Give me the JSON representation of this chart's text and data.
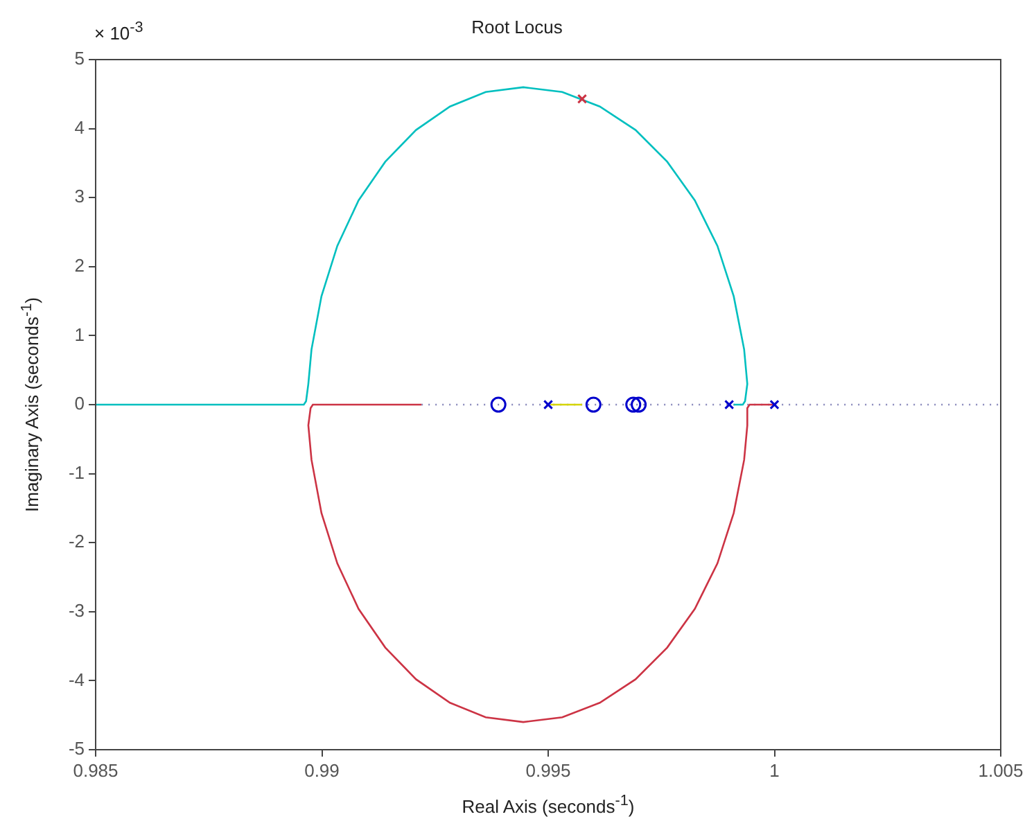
{
  "chart_data": {
    "type": "line",
    "title": "Root Locus",
    "xlabel": "Real Axis (seconds$^{-1}$)",
    "ylabel": "Imaginary Axis (seconds$^{-1}$)",
    "annotations": [
      "× 10$^{-3}$"
    ],
    "xlim": [
      0.985,
      1.005
    ],
    "xticks": [
      0.985,
      0.99,
      0.995,
      1,
      1.005
    ],
    "ylim": [
      -5,
      5
    ],
    "yticks": [
      -5,
      -4,
      -3,
      -2,
      -1,
      0,
      1,
      2,
      3,
      4,
      5
    ],
    "grid": false,
    "legend": false,
    "series": [
      {
        "type": "line",
        "color": "#00bfbf",
        "marker": "none",
        "line_style": "solid",
        "x": [
          0.985,
          0.9896,
          0.98965,
          0.9897,
          0.98977,
          0.98999,
          0.99034,
          0.99081,
          0.9914,
          0.99208,
          0.99283,
          0.99362,
          0.99445,
          0.99531,
          0.99614,
          0.99693,
          0.99763,
          0.99824,
          0.99874,
          0.9991,
          0.99933,
          0.9994,
          0.99935,
          0.9993,
          0.9991
        ],
        "values": [
          0,
          0,
          0.05,
          0.3,
          0.8,
          1.57,
          2.3,
          2.96,
          3.52,
          3.98,
          4.32,
          4.53,
          4.6,
          4.53,
          4.32,
          3.98,
          3.52,
          2.96,
          2.3,
          1.57,
          0.8,
          0.3,
          0.05,
          0,
          0
        ]
      },
      {
        "type": "line",
        "color": "#cc3344",
        "marker": "none",
        "line_style": "solid",
        "x": [
          1.0,
          0.99945,
          0.9994,
          0.9994,
          0.99933,
          0.9991,
          0.99874,
          0.99824,
          0.99763,
          0.99693,
          0.99614,
          0.99531,
          0.99445,
          0.99362,
          0.99283,
          0.99208,
          0.9914,
          0.99081,
          0.99034,
          0.98999,
          0.98977,
          0.9897,
          0.98975,
          0.9898,
          0.9922
        ],
        "values": [
          0,
          0,
          -0.05,
          -0.3,
          -0.8,
          -1.57,
          -2.3,
          -2.96,
          -3.52,
          -3.98,
          -4.32,
          -4.53,
          -4.6,
          -4.53,
          -4.32,
          -3.98,
          -3.52,
          -2.96,
          -2.3,
          -1.57,
          -0.8,
          -0.3,
          -0.05,
          0,
          0
        ]
      },
      {
        "type": "line",
        "color": "#d4d400",
        "marker": "none",
        "line_style": "solid",
        "x": [
          0.99505,
          0.99575
        ],
        "values": [
          0,
          0
        ]
      },
      {
        "type": "line",
        "color": "#8888bb",
        "marker": "none",
        "line_style": "dotted",
        "x": [
          0.9922,
          1.005
        ],
        "values": [
          0,
          0
        ]
      },
      {
        "type": "scatter",
        "color": "#0000cc",
        "marker": "circle",
        "x": [
          0.9939,
          0.996,
          0.99688,
          0.997
        ],
        "values": [
          0,
          0,
          0,
          0
        ]
      },
      {
        "type": "scatter",
        "color": "#0000cc",
        "marker": "cross",
        "x": [
          0.995,
          0.999,
          1.0
        ],
        "values": [
          0,
          0,
          0
        ]
      },
      {
        "type": "scatter",
        "color": "#cc3344",
        "marker": "cross",
        "x": [
          0.99575
        ],
        "values": [
          4.43
        ]
      }
    ]
  }
}
